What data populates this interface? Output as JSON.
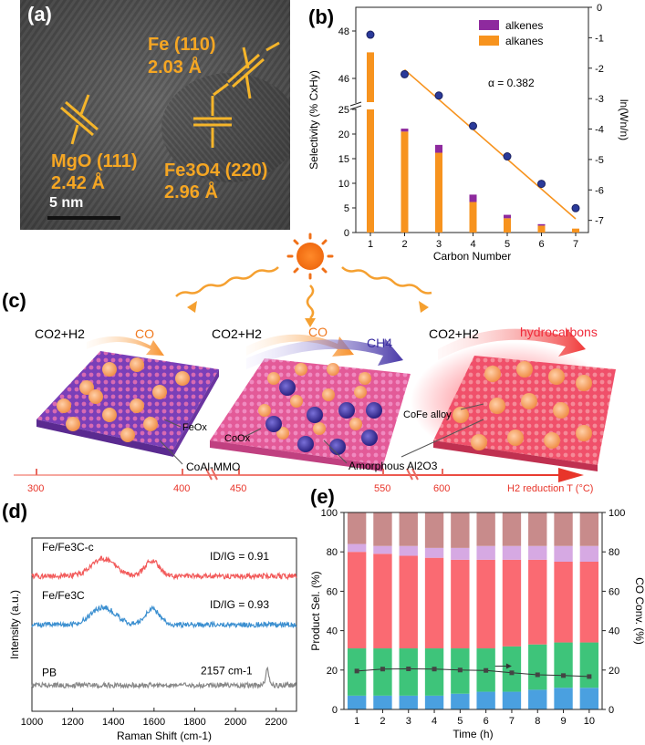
{
  "panel_a": {
    "label": "(a)",
    "fe110_label": "Fe (110)",
    "fe110_d": "2.03 Å",
    "mgo_label": "MgO (111)",
    "mgo_d": "2.42 Å",
    "fe3o4_label": "Fe3O4 (220)",
    "fe3o4_d": "2.96 Å",
    "scale_bar": "5 nm",
    "colors": {
      "accent": "#f5a623",
      "bg": "#5a5a5a"
    }
  },
  "panel_c": {
    "label": "(c)",
    "stage1": {
      "feed": "CO2+H2",
      "product": "CO",
      "labels": [
        "FeOx",
        "CoAl-MMO"
      ]
    },
    "stage2": {
      "feed": "CO2+H2",
      "product1": "CO",
      "product2": "CH4",
      "labels": [
        "CoOx",
        "Amorphous Al2O3"
      ]
    },
    "stage3": {
      "feed": "CO2+H2",
      "product": "hydrocarbons",
      "labels": [
        "CoFe alloy"
      ]
    },
    "axis_ticks": [
      "300",
      "400",
      "450",
      "550",
      "600"
    ],
    "axis_title": "H2 reduction T (°C)"
  },
  "chart_data": [
    {
      "id": "b",
      "label": "(b)",
      "type": "bar",
      "xlabel": "Carbon Number",
      "ylabel": "Selectivity (% CxHy)",
      "y2label": "ln(Wn/n)",
      "categories": [
        "1",
        "2",
        "3",
        "4",
        "5",
        "6",
        "7"
      ],
      "series": [
        {
          "name": "alkanes",
          "color": "#f7931e",
          "values": [
            47.1,
            20.5,
            16.2,
            6.2,
            2.9,
            1.4,
            0.8
          ]
        },
        {
          "name": "alkenes",
          "color": "#8e2a9e",
          "values": [
            0,
            0.6,
            1.6,
            1.5,
            0.7,
            0.3,
            0
          ]
        }
      ],
      "ylim_lower": [
        0,
        25
      ],
      "ylim_upper": [
        45,
        49
      ],
      "yticks": [
        "0",
        "5",
        "10",
        "15",
        "20",
        "25",
        "46",
        "48"
      ],
      "y2lim": [
        -7.4,
        0
      ],
      "y2ticks": [
        "0",
        "-1",
        "-2",
        "-3",
        "-4",
        "-5",
        "-6",
        "-7"
      ],
      "asf_points": [
        -0.9,
        -2.2,
        -2.9,
        -3.9,
        -4.9,
        -5.8,
        -6.6
      ],
      "fit_line": {
        "from": [
          2,
          -2.05
        ],
        "to": [
          7,
          -6.95
        ]
      },
      "annotation": "α = 0.382"
    },
    {
      "id": "d",
      "label": "(d)",
      "type": "line",
      "xlabel": "Raman Shift (cm-1)",
      "ylabel": "Intensity (a.u.)",
      "xlim": [
        1000,
        2300
      ],
      "xticks": [
        "1000",
        "1200",
        "1400",
        "1600",
        "1800",
        "2000",
        "2200"
      ],
      "series": [
        {
          "name": "Fe/Fe3C-c",
          "color": "#f25a5a",
          "ratio": "ID/IG = 0.91",
          "baseline": 0.78,
          "dband": 1350,
          "gband": 1590
        },
        {
          "name": "Fe/Fe3C",
          "color": "#3b8fd0",
          "ratio": "ID/IG = 0.93",
          "baseline": 0.5,
          "dband": 1350,
          "gband": 1590
        },
        {
          "name": "PB",
          "color": "#888888",
          "peak_label": "2157 cm-1",
          "baseline": 0.15,
          "peak": 2157
        }
      ]
    },
    {
      "id": "e",
      "label": "(e)",
      "type": "bar",
      "stacked": true,
      "xlabel": "Time (h)",
      "ylabel": "Product Sel. (%)",
      "y2label": "CO Conv. (%)",
      "categories": [
        "1",
        "2",
        "3",
        "4",
        "5",
        "6",
        "7",
        "8",
        "9",
        "10"
      ],
      "ylim": [
        0,
        100
      ],
      "yticks": [
        "0",
        "20",
        "40",
        "60",
        "80",
        "100"
      ],
      "series": [
        {
          "name": "blue",
          "color": "#4aa0e0",
          "values": [
            7,
            7,
            7,
            7,
            8,
            9,
            9,
            10,
            11,
            11
          ]
        },
        {
          "name": "green",
          "color": "#3ec47a",
          "values": [
            24,
            24,
            24,
            24,
            23,
            22,
            23,
            23,
            23,
            23
          ]
        },
        {
          "name": "red",
          "color": "#fa6a72",
          "values": [
            49,
            48,
            47,
            46,
            45,
            45,
            44,
            43,
            41,
            41
          ]
        },
        {
          "name": "lavender",
          "color": "#d6a9e3",
          "values": [
            4,
            4,
            5,
            5,
            6,
            7,
            7,
            7,
            8,
            8
          ]
        },
        {
          "name": "mauve",
          "color": "#c88b8b",
          "values": [
            16,
            17,
            17,
            18,
            18,
            17,
            17,
            17,
            17,
            17
          ]
        }
      ],
      "conversion": [
        19.5,
        20.5,
        20.6,
        20.5,
        20.0,
        19.8,
        18.6,
        17.6,
        17.2,
        16.7
      ]
    }
  ]
}
